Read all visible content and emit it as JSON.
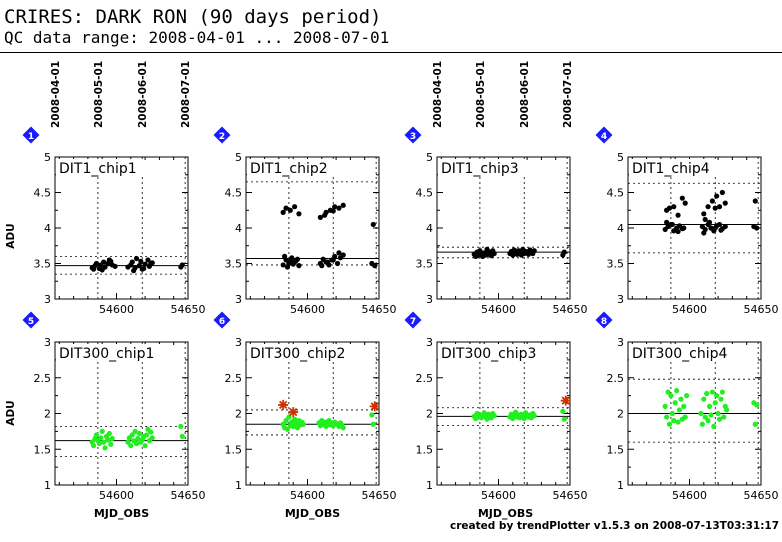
{
  "header": {
    "title": "CRIRES: DARK RON (90 days period)",
    "subtitle": "QC data range: 2008-04-01 ... 2008-07-01"
  },
  "footer": "created by trendPlotter v1.5.3 on 2008-07-13T03:31:17",
  "colors": {
    "top_points": "#000000",
    "bottom_points": "#22ee22",
    "outlier_star": "#cc3300",
    "badge": "#1a1aff"
  },
  "date_ticks": [
    {
      "label": "2008-04-01",
      "mjd": 54557
    },
    {
      "label": "2008-05-01",
      "mjd": 54587
    },
    {
      "label": "2008-06-01",
      "mjd": 54618
    },
    {
      "label": "2008-07-01",
      "mjd": 54648
    }
  ],
  "axes": {
    "xlabel": "MJD_OBS",
    "ylabel": "ADU",
    "xlim": [
      54557,
      54650
    ],
    "xticks": [
      54600,
      54650
    ],
    "top_ylim": [
      3,
      5
    ],
    "top_yticks": [
      "3",
      "3.5",
      "4",
      "4.5",
      "5"
    ],
    "bottom_ylim": [
      1,
      3
    ],
    "bottom_yticks": [
      "1",
      "1.5",
      "2",
      "2.5",
      "3"
    ]
  },
  "chart_data": [
    {
      "type": "scatter",
      "badge": "1",
      "title": "DIT1_chip1",
      "row": 0,
      "ylim": [
        3,
        5
      ],
      "mean": 3.47,
      "band": [
        3.35,
        3.6
      ],
      "series": [
        {
          "x": [
            54583,
            54585,
            54586,
            54588,
            54589,
            54591,
            54592,
            54594,
            54595,
            54597,
            54599,
            54584,
            54590,
            54596,
            54608,
            54610,
            54611,
            54613,
            54614,
            54616,
            54617,
            54619,
            54620,
            54622,
            54623,
            54625,
            54612,
            54618,
            54624,
            54645,
            54646
          ],
          "y": [
            3.44,
            3.47,
            3.5,
            3.43,
            3.48,
            3.52,
            3.45,
            3.5,
            3.55,
            3.48,
            3.46,
            3.42,
            3.41,
            3.53,
            3.45,
            3.48,
            3.52,
            3.44,
            3.57,
            3.47,
            3.53,
            3.43,
            3.49,
            3.55,
            3.46,
            3.51,
            3.4,
            3.42,
            3.5,
            3.45,
            3.48
          ]
        }
      ],
      "outliers": []
    },
    {
      "type": "scatter",
      "badge": "2",
      "title": "DIT1_chip2",
      "row": 0,
      "ylim": [
        3,
        5
      ],
      "mean": 3.57,
      "band": [
        3.48,
        4.65
      ],
      "series": [
        {
          "x": [
            54583,
            54585,
            54587,
            54589,
            54591,
            54593,
            54584,
            54586,
            54588,
            54590,
            54592,
            54594,
            54609,
            54611,
            54613,
            54615,
            54617,
            54619,
            54621,
            54623,
            54625,
            54610,
            54614,
            54618,
            54622,
            54645,
            54647,
            54583,
            54585,
            54588,
            54591,
            54594,
            54609,
            54613,
            54616,
            54619,
            54622,
            54625,
            54612,
            54618,
            54646
          ],
          "y": [
            3.48,
            3.55,
            3.5,
            3.58,
            3.52,
            3.56,
            3.6,
            3.45,
            3.53,
            3.49,
            3.54,
            3.47,
            3.5,
            3.56,
            3.52,
            3.48,
            3.55,
            3.6,
            3.5,
            3.58,
            3.62,
            3.47,
            3.52,
            3.55,
            3.65,
            3.5,
            3.47,
            4.22,
            4.28,
            4.25,
            4.3,
            4.2,
            4.15,
            4.22,
            4.25,
            4.3,
            4.28,
            4.32,
            4.18,
            4.24,
            4.05
          ]
        }
      ],
      "outliers": []
    },
    {
      "type": "scatter",
      "badge": "3",
      "title": "DIT1_chip3",
      "row": 0,
      "ylim": [
        3,
        5
      ],
      "mean": 3.66,
      "band": [
        3.58,
        3.73
      ],
      "series": [
        {
          "x": [
            54583,
            54584,
            54585,
            54586,
            54587,
            54588,
            54589,
            54590,
            54591,
            54592,
            54593,
            54594,
            54595,
            54596,
            54597,
            54608,
            54609,
            54610,
            54611,
            54612,
            54613,
            54614,
            54615,
            54616,
            54617,
            54618,
            54619,
            54620,
            54621,
            54622,
            54623,
            54624,
            54625,
            54645,
            54646
          ],
          "y": [
            3.63,
            3.6,
            3.66,
            3.62,
            3.68,
            3.64,
            3.6,
            3.65,
            3.62,
            3.7,
            3.63,
            3.66,
            3.61,
            3.68,
            3.64,
            3.64,
            3.67,
            3.62,
            3.69,
            3.65,
            3.63,
            3.68,
            3.66,
            3.62,
            3.7,
            3.64,
            3.67,
            3.65,
            3.63,
            3.69,
            3.66,
            3.64,
            3.68,
            3.62,
            3.66
          ]
        }
      ],
      "outliers": []
    },
    {
      "type": "scatter",
      "badge": "4",
      "title": "DIT1_chip4",
      "row": 0,
      "ylim": [
        3,
        5
      ],
      "mean": 4.05,
      "band": [
        3.65,
        4.63
      ],
      "series": [
        {
          "x": [
            54583,
            54585,
            54587,
            54589,
            54591,
            54593,
            54595,
            54584,
            54588,
            54592,
            54596,
            54609,
            54611,
            54613,
            54615,
            54617,
            54619,
            54621,
            54623,
            54625,
            54610,
            54614,
            54618,
            54622,
            54645,
            54647,
            54584,
            54586,
            54589,
            54592,
            54595,
            54597,
            54610,
            54613,
            54616,
            54619,
            54621,
            54623,
            54625,
            54611,
            54618,
            54646
          ],
          "y": [
            3.98,
            4.02,
            4.05,
            3.96,
            4.0,
            4.03,
            3.99,
            4.08,
            4.05,
            3.95,
            4.0,
            4.02,
            3.98,
            4.05,
            4.0,
            3.96,
            4.03,
            4.05,
            3.99,
            4.02,
            3.93,
            4.08,
            4.0,
            3.97,
            4.02,
            4.0,
            4.25,
            4.28,
            4.3,
            4.18,
            4.42,
            4.35,
            4.2,
            4.3,
            4.38,
            4.45,
            4.3,
            4.5,
            4.35,
            4.12,
            4.28,
            4.38
          ]
        }
      ],
      "outliers": []
    },
    {
      "type": "scatter",
      "badge": "5",
      "title": "DIT300_chip1",
      "row": 1,
      "ylim": [
        1,
        3
      ],
      "mean": 1.62,
      "band": [
        1.4,
        1.82
      ],
      "series": [
        {
          "x": [
            54583,
            54584,
            54585,
            54586,
            54587,
            54588,
            54589,
            54590,
            54591,
            54592,
            54593,
            54594,
            54595,
            54596,
            54597,
            54608,
            54609,
            54610,
            54611,
            54612,
            54613,
            54614,
            54615,
            54616,
            54617,
            54618,
            54619,
            54620,
            54621,
            54622,
            54623,
            54624,
            54625,
            54645,
            54646
          ],
          "y": [
            1.6,
            1.55,
            1.65,
            1.7,
            1.62,
            1.58,
            1.66,
            1.75,
            1.6,
            1.52,
            1.68,
            1.63,
            1.72,
            1.57,
            1.65,
            1.6,
            1.66,
            1.55,
            1.7,
            1.62,
            1.75,
            1.58,
            1.65,
            1.72,
            1.6,
            1.63,
            1.68,
            1.55,
            1.7,
            1.78,
            1.62,
            1.74,
            1.66,
            1.82,
            1.68
          ]
        }
      ],
      "outliers": []
    },
    {
      "type": "scatter",
      "badge": "6",
      "title": "DIT300_chip2",
      "row": 1,
      "ylim": [
        1,
        3
      ],
      "mean": 1.85,
      "band": [
        1.7,
        2.05
      ],
      "series": [
        {
          "x": [
            54583,
            54584,
            54585,
            54586,
            54587,
            54588,
            54589,
            54590,
            54591,
            54592,
            54593,
            54594,
            54595,
            54596,
            54597,
            54608,
            54609,
            54610,
            54611,
            54612,
            54613,
            54614,
            54615,
            54616,
            54617,
            54618,
            54619,
            54620,
            54621,
            54622,
            54623,
            54624,
            54625,
            54645,
            54646
          ],
          "y": [
            1.85,
            1.8,
            1.9,
            1.78,
            1.95,
            1.83,
            1.88,
            1.82,
            1.92,
            1.86,
            1.8,
            1.9,
            1.84,
            1.88,
            1.85,
            1.87,
            1.83,
            1.9,
            1.85,
            1.88,
            1.82,
            1.86,
            1.9,
            1.84,
            1.87,
            1.83,
            1.88,
            1.86,
            1.85,
            1.82,
            1.87,
            1.84,
            1.8,
            1.98,
            1.85
          ]
        }
      ],
      "outliers": [
        {
          "x": [
            54583,
            54590,
            54647
          ],
          "y": [
            2.12,
            2.02,
            2.1
          ]
        }
      ]
    },
    {
      "type": "scatter",
      "badge": "7",
      "title": "DIT300_chip3",
      "row": 1,
      "ylim": [
        1,
        3
      ],
      "mean": 1.96,
      "band": [
        1.83,
        2.08
      ],
      "series": [
        {
          "x": [
            54583,
            54584,
            54585,
            54586,
            54587,
            54588,
            54589,
            54590,
            54591,
            54592,
            54593,
            54594,
            54595,
            54596,
            54597,
            54608,
            54609,
            54610,
            54611,
            54612,
            54613,
            54614,
            54615,
            54616,
            54617,
            54618,
            54619,
            54620,
            54621,
            54622,
            54623,
            54624,
            54625,
            54645,
            54646
          ],
          "y": [
            1.96,
            1.93,
            2.0,
            1.95,
            1.98,
            1.94,
            1.97,
            2.01,
            1.95,
            1.92,
            1.99,
            1.96,
            1.94,
            2.0,
            1.97,
            1.95,
            1.99,
            1.93,
            1.97,
            2.02,
            1.95,
            1.98,
            1.94,
            1.99,
            1.96,
            1.93,
            2.01,
            1.96,
            1.95,
            1.98,
            1.94,
            2.0,
            1.97,
            2.03,
            1.92
          ]
        }
      ],
      "outliers": [
        {
          "x": [
            54647
          ],
          "y": [
            2.18
          ]
        }
      ]
    },
    {
      "type": "scatter",
      "badge": "8",
      "title": "DIT300_chip4",
      "row": 1,
      "ylim": [
        1,
        3
      ],
      "mean": 2.0,
      "band": [
        1.6,
        2.48
      ],
      "series": [
        {
          "x": [
            54583,
            54584,
            54585,
            54586,
            54587,
            54588,
            54589,
            54590,
            54591,
            54592,
            54593,
            54594,
            54595,
            54596,
            54597,
            54598,
            54608,
            54609,
            54610,
            54611,
            54612,
            54613,
            54614,
            54615,
            54616,
            54617,
            54618,
            54619,
            54620,
            54621,
            54622,
            54623,
            54624,
            54625,
            54626,
            54645,
            54646,
            54647
          ],
          "y": [
            2.1,
            1.95,
            2.3,
            1.85,
            2.25,
            2.0,
            1.9,
            2.15,
            2.32,
            1.88,
            2.05,
            2.2,
            1.92,
            2.1,
            1.95,
            2.25,
            2.0,
            1.85,
            2.2,
            1.95,
            2.28,
            1.9,
            2.1,
            1.98,
            2.3,
            1.82,
            2.15,
            2.25,
            2.0,
            1.92,
            2.2,
            2.3,
            1.95,
            2.1,
            2.05,
            2.15,
            1.85,
            2.12
          ]
        }
      ],
      "outliers": []
    }
  ]
}
